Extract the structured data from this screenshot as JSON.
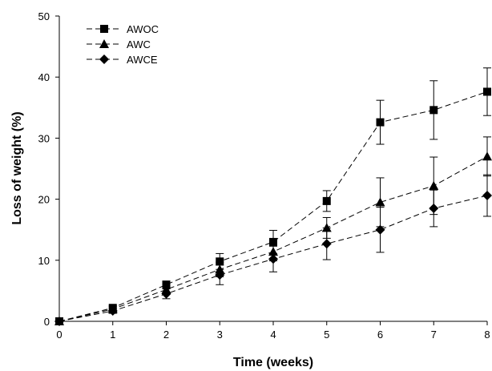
{
  "chart_data": {
    "type": "line",
    "xlabel": "Time (weeks)",
    "ylabel": "Loss of weight (%)",
    "xlim": [
      0,
      8
    ],
    "ylim": [
      0,
      50
    ],
    "xticks": [
      0,
      1,
      2,
      3,
      4,
      5,
      6,
      7,
      8
    ],
    "yticks": [
      0,
      10,
      20,
      30,
      40,
      50
    ],
    "grid": false,
    "legend_position": "top-left",
    "line_style": "dashed",
    "series": [
      {
        "name": "AWOC",
        "marker": "square",
        "x": [
          0,
          1,
          2,
          3,
          4,
          5,
          6,
          7,
          8
        ],
        "y": [
          0,
          2.2,
          6.0,
          9.8,
          13.0,
          19.7,
          32.6,
          34.6,
          37.6
        ],
        "error": [
          0,
          0.4,
          0.6,
          1.3,
          1.9,
          1.7,
          3.6,
          4.8,
          3.9
        ]
      },
      {
        "name": "AWC",
        "marker": "triangle",
        "x": [
          0,
          1,
          2,
          3,
          4,
          5,
          6,
          7,
          8
        ],
        "y": [
          0,
          2.0,
          5.2,
          8.5,
          11.4,
          15.3,
          19.5,
          22.2,
          27.0
        ],
        "error": [
          0,
          0.4,
          0.7,
          1.2,
          1.5,
          1.7,
          4.0,
          4.7,
          3.2
        ]
      },
      {
        "name": "AWCE",
        "marker": "diamond",
        "x": [
          0,
          1,
          2,
          3,
          4,
          5,
          6,
          7,
          8
        ],
        "y": [
          0,
          1.7,
          4.5,
          7.6,
          10.2,
          12.7,
          15.0,
          18.5,
          20.6
        ],
        "error": [
          0,
          0.4,
          0.8,
          1.6,
          2.1,
          2.6,
          3.7,
          3.0,
          3.4
        ]
      }
    ]
  }
}
